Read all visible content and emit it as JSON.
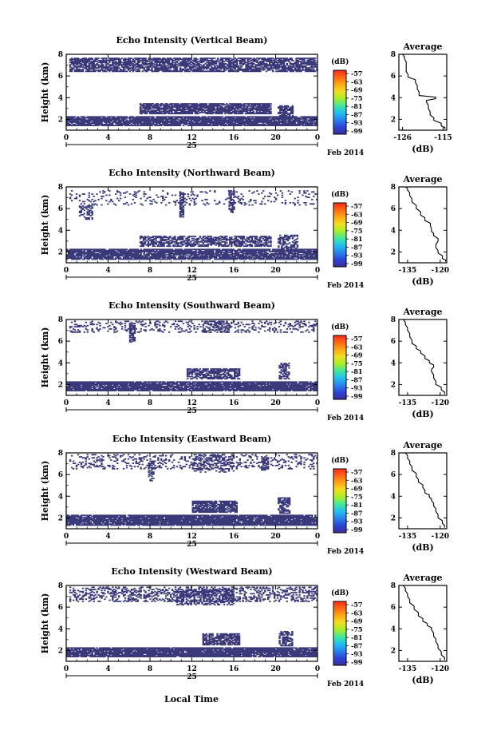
{
  "figure": {
    "date_labels": {
      "day": "25",
      "month": "Feb 2014"
    },
    "xlabel": "Local Time",
    "colorbar": {
      "unit": "(dB)",
      "ticks": [
        "-57",
        "-63",
        "-69",
        "-75",
        "-81",
        "-87",
        "-93",
        "-99"
      ],
      "colors": [
        "#ff2a1a",
        "#ff6a14",
        "#ffa814",
        "#f0e020",
        "#a8ee2a",
        "#40e8a0",
        "#20c0f0",
        "#2a82ee",
        "#2c44d8",
        "#3a2e96"
      ]
    },
    "echo_color": "#3a3a7a",
    "average_title": "Average",
    "average_xlabel": "(dB)"
  },
  "chart_data": [
    {
      "type": "heatmap",
      "title": "Echo Intensity (Vertical Beam)",
      "ylabel": "Height (km)",
      "xlim": [
        0,
        24
      ],
      "ylim": [
        1,
        8
      ],
      "x_ticks": [
        "0",
        "4",
        "8",
        "12",
        "16",
        "20",
        "0"
      ],
      "y_ticks": [
        "2",
        "4",
        "6",
        "8"
      ],
      "echo_regions": [
        {
          "t0": 0.3,
          "t1": 24,
          "h0": 6.4,
          "h1": 7.6,
          "density": 0.75
        },
        {
          "t0": 0,
          "t1": 24,
          "h0": 1.4,
          "h1": 2.3,
          "density": 0.93
        },
        {
          "t0": 7,
          "t1": 19.5,
          "h0": 2.5,
          "h1": 3.5,
          "density": 0.85
        },
        {
          "t0": 20.2,
          "t1": 21.6,
          "h0": 2.3,
          "h1": 3.3,
          "density": 0.7
        }
      ],
      "average": {
        "xticks": [
          "-126",
          "-115"
        ],
        "xlim": [
          -127,
          -114
        ],
        "yticks": [
          "2",
          "4",
          "6",
          "8"
        ],
        "ylim": [
          1,
          8
        ],
        "profile": [
          [
            -114.5,
            1.1
          ],
          [
            -115.5,
            1.4
          ],
          [
            -117.5,
            1.9
          ],
          [
            -118.5,
            2.4
          ],
          [
            -119,
            3
          ],
          [
            -119.5,
            3.6
          ],
          [
            -117,
            3.9
          ],
          [
            -121.5,
            4.2
          ],
          [
            -122,
            4.8
          ],
          [
            -122.5,
            5.4
          ],
          [
            -124.5,
            5.9
          ],
          [
            -125,
            6.4
          ],
          [
            -125,
            7
          ],
          [
            -125.5,
            7.6
          ],
          [
            -126,
            8
          ]
        ]
      }
    },
    {
      "type": "heatmap",
      "title": "Echo Intensity (Northward Beam)",
      "ylabel": "Height (km)",
      "xlim": [
        0,
        24
      ],
      "ylim": [
        1,
        8
      ],
      "x_ticks": [
        "0",
        "4",
        "8",
        "12",
        "16",
        "20",
        "0"
      ],
      "y_ticks": [
        "2",
        "4",
        "6",
        "8"
      ],
      "echo_regions": [
        {
          "t0": 0.3,
          "t1": 24,
          "h0": 6.3,
          "h1": 7.6,
          "density": 0.12
        },
        {
          "t0": 1.2,
          "t1": 2.4,
          "h0": 5.0,
          "h1": 6.2,
          "density": 0.45
        },
        {
          "t0": 10.8,
          "t1": 11.2,
          "h0": 5.2,
          "h1": 7.4,
          "density": 0.7
        },
        {
          "t0": 15.5,
          "t1": 16.0,
          "h0": 5.6,
          "h1": 7.6,
          "density": 0.6
        },
        {
          "t0": 0,
          "t1": 24,
          "h0": 1.3,
          "h1": 2.3,
          "density": 0.88
        },
        {
          "t0": 7,
          "t1": 19.5,
          "h0": 2.5,
          "h1": 3.5,
          "density": 0.65
        },
        {
          "t0": 20.2,
          "t1": 22,
          "h0": 2.3,
          "h1": 3.6,
          "density": 0.55
        }
      ],
      "average": {
        "xticks": [
          "-135",
          "-120"
        ],
        "xlim": [
          -139,
          -117
        ],
        "yticks": [
          "2",
          "4",
          "6",
          "8"
        ],
        "ylim": [
          1,
          8
        ],
        "profile": [
          [
            -117.5,
            1.1
          ],
          [
            -119,
            1.4
          ],
          [
            -121,
            1.9
          ],
          [
            -122,
            2.4
          ],
          [
            -121,
            3
          ],
          [
            -123,
            3.5
          ],
          [
            -124,
            3.9
          ],
          [
            -124.5,
            4.4
          ],
          [
            -127,
            4.9
          ],
          [
            -129,
            5.4
          ],
          [
            -131,
            6
          ],
          [
            -133,
            6.6
          ],
          [
            -134,
            7.2
          ],
          [
            -135,
            7.7
          ],
          [
            -136,
            8
          ]
        ]
      }
    },
    {
      "type": "heatmap",
      "title": "Echo Intensity (Southward Beam)",
      "ylabel": "Height (km)",
      "xlim": [
        0,
        24
      ],
      "ylim": [
        1,
        8
      ],
      "x_ticks": [
        "0",
        "4",
        "8",
        "12",
        "16",
        "20",
        "0"
      ],
      "y_ticks": [
        "2",
        "4",
        "6",
        "8"
      ],
      "echo_regions": [
        {
          "t0": 0.3,
          "t1": 24,
          "h0": 6.8,
          "h1": 7.8,
          "density": 0.22
        },
        {
          "t0": 6,
          "t1": 6.6,
          "h0": 5.8,
          "h1": 7.6,
          "density": 0.6
        },
        {
          "t0": 13,
          "t1": 15.8,
          "h0": 6.8,
          "h1": 7.8,
          "density": 0.45
        },
        {
          "t0": 0,
          "t1": 24,
          "h0": 1.4,
          "h1": 2.3,
          "density": 0.92
        },
        {
          "t0": 11.5,
          "t1": 16.5,
          "h0": 2.5,
          "h1": 3.5,
          "density": 0.72
        },
        {
          "t0": 20.3,
          "t1": 21.3,
          "h0": 2.5,
          "h1": 4.0,
          "density": 0.65
        }
      ],
      "average": {
        "xticks": [
          "-135",
          "-120"
        ],
        "xlim": [
          -139,
          -117
        ],
        "yticks": [
          "2",
          "4",
          "6",
          "8"
        ],
        "ylim": [
          1,
          8
        ],
        "profile": [
          [
            -118,
            1.1
          ],
          [
            -119.5,
            1.5
          ],
          [
            -122,
            2
          ],
          [
            -123,
            2.6
          ],
          [
            -124,
            3.2
          ],
          [
            -123,
            3.6
          ],
          [
            -125,
            4
          ],
          [
            -127,
            4.4
          ],
          [
            -129,
            4.9
          ],
          [
            -131,
            5.3
          ],
          [
            -133,
            5.8
          ],
          [
            -134,
            6.4
          ],
          [
            -135,
            7
          ],
          [
            -136,
            7.5
          ],
          [
            -137,
            8
          ]
        ]
      }
    },
    {
      "type": "heatmap",
      "title": "Echo Intensity (Eastward Beam)",
      "ylabel": "Height (km)",
      "xlim": [
        0,
        24
      ],
      "ylim": [
        1,
        8
      ],
      "x_ticks": [
        "0",
        "4",
        "8",
        "12",
        "16",
        "20",
        "0"
      ],
      "y_ticks": [
        "2",
        "4",
        "6",
        "8"
      ],
      "echo_regions": [
        {
          "t0": 0.3,
          "t1": 24,
          "h0": 6.5,
          "h1": 7.8,
          "density": 0.2
        },
        {
          "t0": 7.8,
          "t1": 8.4,
          "h0": 5.4,
          "h1": 7.2,
          "density": 0.55
        },
        {
          "t0": 12,
          "t1": 16,
          "h0": 6.2,
          "h1": 7.8,
          "density": 0.35
        },
        {
          "t0": 18.6,
          "t1": 19.2,
          "h0": 6.4,
          "h1": 7.6,
          "density": 0.6
        },
        {
          "t0": 0,
          "t1": 24,
          "h0": 1.3,
          "h1": 2.3,
          "density": 0.93
        },
        {
          "t0": 12,
          "t1": 16.3,
          "h0": 2.5,
          "h1": 3.6,
          "density": 0.85
        },
        {
          "t0": 20.2,
          "t1": 21.3,
          "h0": 2.4,
          "h1": 3.9,
          "density": 0.65
        }
      ],
      "average": {
        "xticks": [
          "-135",
          "-120"
        ],
        "xlim": [
          -139,
          -117
        ],
        "yticks": [
          "2",
          "4",
          "6",
          "8"
        ],
        "ylim": [
          1,
          8
        ],
        "profile": [
          [
            -118,
            1.1
          ],
          [
            -119,
            1.5
          ],
          [
            -121,
            2
          ],
          [
            -122,
            2.6
          ],
          [
            -123,
            3.1
          ],
          [
            -124,
            3.6
          ],
          [
            -125,
            3.9
          ],
          [
            -127,
            4.3
          ],
          [
            -128,
            4.8
          ],
          [
            -130,
            5.3
          ],
          [
            -131,
            5.8
          ],
          [
            -133,
            6.4
          ],
          [
            -134,
            7
          ],
          [
            -135,
            7.5
          ],
          [
            -136,
            8
          ]
        ]
      }
    },
    {
      "type": "heatmap",
      "title": "Echo Intensity (Westward Beam)",
      "ylabel": "Height (km)",
      "xlim": [
        0,
        24
      ],
      "ylim": [
        1,
        8
      ],
      "x_ticks": [
        "0",
        "4",
        "8",
        "12",
        "16",
        "20",
        "0"
      ],
      "y_ticks": [
        "2",
        "4",
        "6",
        "8"
      ],
      "echo_regions": [
        {
          "t0": 0.3,
          "t1": 24,
          "h0": 6.5,
          "h1": 7.8,
          "density": 0.35
        },
        {
          "t0": 10.5,
          "t1": 16,
          "h0": 6.2,
          "h1": 7.6,
          "density": 0.5
        },
        {
          "t0": 0,
          "t1": 24,
          "h0": 1.4,
          "h1": 2.3,
          "density": 0.92
        },
        {
          "t0": 13,
          "t1": 16.5,
          "h0": 2.5,
          "h1": 3.6,
          "density": 0.78
        },
        {
          "t0": 20.3,
          "t1": 21.6,
          "h0": 2.4,
          "h1": 3.8,
          "density": 0.62
        }
      ],
      "average": {
        "xticks": [
          "-135",
          "-120"
        ],
        "xlim": [
          -139,
          -117
        ],
        "yticks": [
          "2",
          "4",
          "6",
          "8"
        ],
        "ylim": [
          1,
          8
        ],
        "profile": [
          [
            -118,
            1.1
          ],
          [
            -119.5,
            1.6
          ],
          [
            -121,
            2.2
          ],
          [
            -122,
            2.8
          ],
          [
            -123,
            3.3
          ],
          [
            -124,
            3.9
          ],
          [
            -126,
            4.3
          ],
          [
            -128,
            4.7
          ],
          [
            -130,
            5.2
          ],
          [
            -132,
            5.8
          ],
          [
            -134,
            6.4
          ],
          [
            -135,
            7
          ],
          [
            -136,
            7.5
          ],
          [
            -137,
            8
          ]
        ]
      }
    }
  ]
}
